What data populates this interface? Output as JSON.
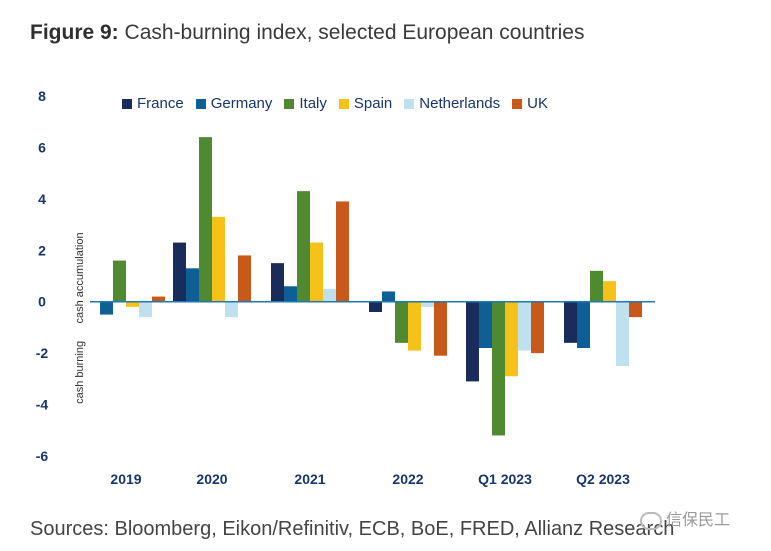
{
  "title": {
    "prefix": "Figure 9:",
    "text": "Cash-burning index, selected European countries"
  },
  "source": "Sources: Bloomberg, Eikon/Refinitiv, ECB, BoE, FRED, Allianz Research",
  "watermark": "信保民工",
  "colors": {
    "France": "#1a2d5a",
    "Germany": "#0e5f96",
    "Italy": "#4f8a30",
    "Spain": "#f6c21a",
    "Netherlands": "#bfe0ee",
    "UK": "#c8591a",
    "axis_text": "#17356e",
    "zero_line": "#1f77b4"
  },
  "chart_data": {
    "type": "bar",
    "title": "Figure 9: Cash-burning index, selected European countries",
    "xlabel": "",
    "ylabel_top": "cash accumulation",
    "ylabel_bottom": "cash burning",
    "ylim": [
      -6,
      8
    ],
    "yticks": [
      8,
      6,
      4,
      2,
      0,
      -2,
      -4,
      -6
    ],
    "grid": false,
    "legend": "top",
    "categories": [
      "2019",
      "2020",
      "2021",
      "2022",
      "Q1 2023",
      "Q2 2023"
    ],
    "series": [
      {
        "name": "France",
        "values": [
          0.0,
          2.3,
          1.5,
          -0.4,
          -3.1,
          -1.6
        ]
      },
      {
        "name": "Germany",
        "values": [
          -0.5,
          1.3,
          0.6,
          0.4,
          -1.8,
          -1.8
        ]
      },
      {
        "name": "Italy",
        "values": [
          1.6,
          6.4,
          4.3,
          -1.6,
          -5.2,
          1.2
        ]
      },
      {
        "name": "Spain",
        "values": [
          -0.2,
          3.3,
          2.3,
          -1.9,
          -2.9,
          0.8
        ]
      },
      {
        "name": "Netherlands",
        "values": [
          -0.6,
          -0.6,
          0.5,
          -0.2,
          -1.9,
          -2.5
        ]
      },
      {
        "name": "UK",
        "values": [
          0.2,
          1.8,
          3.9,
          -2.1,
          -2.0,
          -0.6
        ]
      }
    ]
  }
}
